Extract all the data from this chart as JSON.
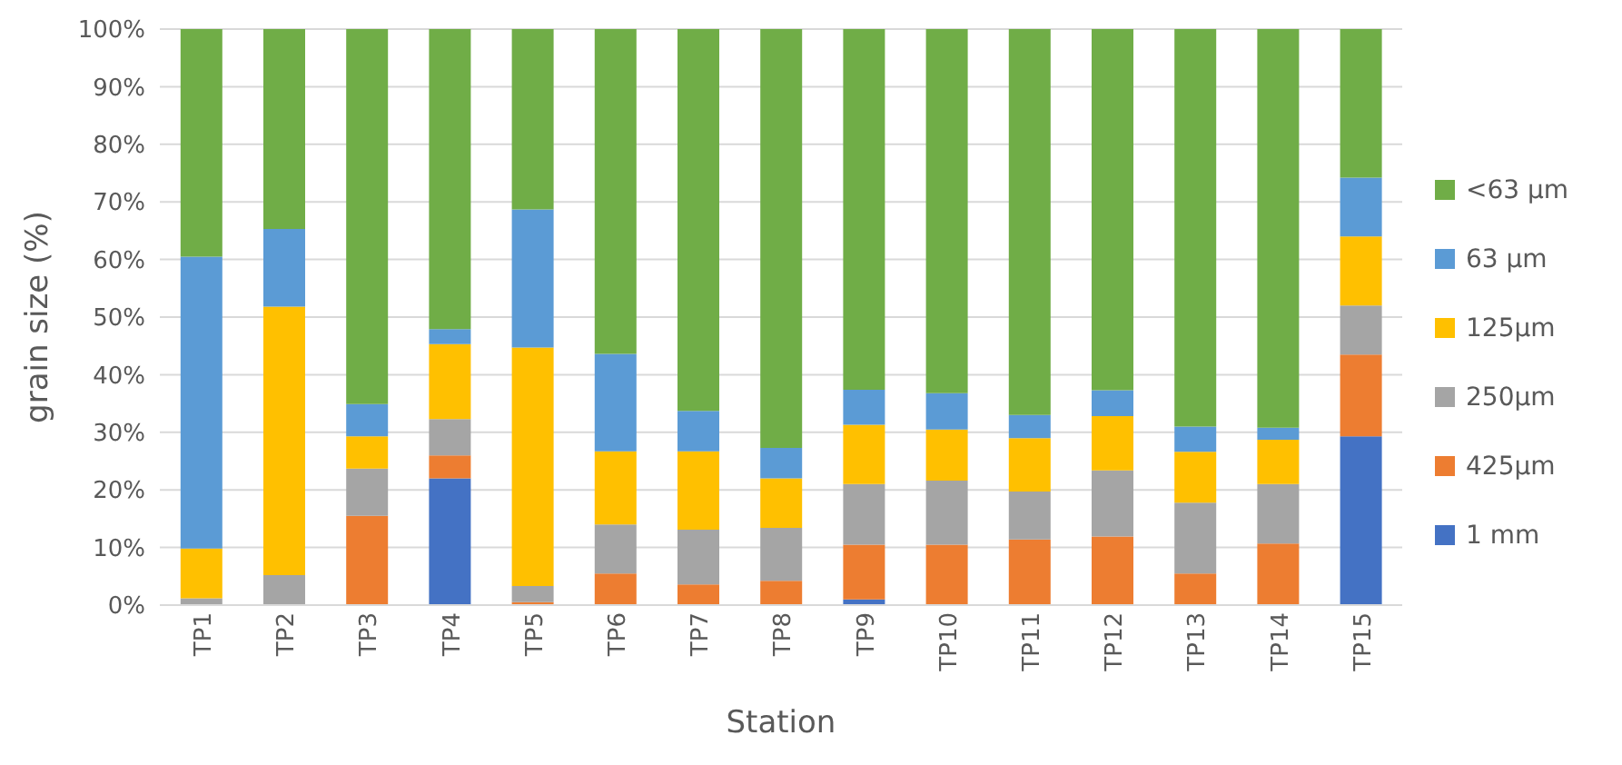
{
  "chart_data": {
    "type": "bar",
    "stacked": true,
    "xlabel": "Station",
    "ylabel": "grain size (%)",
    "categories": [
      "TP1",
      "TP2",
      "TP3",
      "TP4",
      "TP5",
      "TP6",
      "TP7",
      "TP8",
      "TP9",
      "TP10",
      "TP11",
      "TP12",
      "TP13",
      "TP14",
      "TP15"
    ],
    "ylim": [
      0,
      100
    ],
    "yticks": [
      {
        "value": 0,
        "label": "0%"
      },
      {
        "value": 10,
        "label": "10%"
      },
      {
        "value": 20,
        "label": "20%"
      },
      {
        "value": 30,
        "label": "30%"
      },
      {
        "value": 40,
        "label": "40%"
      },
      {
        "value": 50,
        "label": "50%"
      },
      {
        "value": 60,
        "label": "60%"
      },
      {
        "value": 70,
        "label": "70%"
      },
      {
        "value": 80,
        "label": "80%"
      },
      {
        "value": 90,
        "label": "90%"
      },
      {
        "value": 100,
        "label": "100%"
      }
    ],
    "grid": "y",
    "legend": "right",
    "series": [
      {
        "name": "1 mm",
        "color": "#4472c4",
        "values": [
          0,
          0,
          0,
          22,
          0,
          0,
          0,
          0,
          1,
          0,
          0,
          0,
          0,
          0,
          29.3
        ]
      },
      {
        "name": "425µm",
        "color": "#ed7d31",
        "values": [
          0,
          0,
          15.5,
          4,
          0.5,
          5.5,
          3.6,
          4.2,
          9.5,
          10.5,
          11.4,
          11.9,
          5.5,
          10.7,
          14.2
        ]
      },
      {
        "name": "250µm",
        "color": "#a5a5a5",
        "values": [
          1.2,
          5.2,
          8.2,
          6.3,
          2.8,
          8.5,
          9.5,
          9.2,
          10.5,
          11.1,
          8.3,
          11.5,
          12.3,
          10.3,
          8.5
        ]
      },
      {
        "name": "125µm",
        "color": "#ffc000",
        "values": [
          8.6,
          46.6,
          5.6,
          13,
          41.4,
          12.7,
          13.6,
          8.6,
          10.3,
          8.9,
          9.3,
          9.4,
          8.8,
          7.7,
          12
        ]
      },
      {
        "name": "63 µm",
        "color": "#5b9bd5",
        "values": [
          50.7,
          13.5,
          5.6,
          2.6,
          24,
          16.9,
          7,
          5.3,
          6.1,
          6.3,
          4,
          4.5,
          4.4,
          2.1,
          10.2
        ]
      },
      {
        "name": "<63 µm",
        "color": "#70ad47",
        "values": [
          39.5,
          34.7,
          65.1,
          52.1,
          31.3,
          56.4,
          66.3,
          72.7,
          62.6,
          63.2,
          67,
          62.7,
          69,
          69.2,
          25.8
        ]
      }
    ]
  }
}
